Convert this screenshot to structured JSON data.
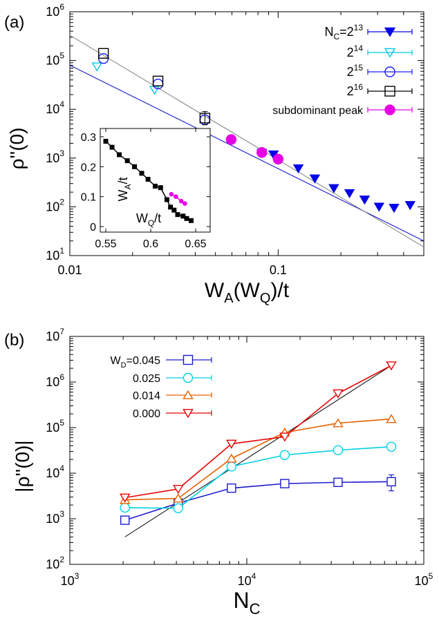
{
  "chart_data": [
    {
      "panel_label": "(a)",
      "type": "scatter",
      "xlabel_main": "W",
      "xlabel_sub_a": "A",
      "xlabel_paren_open": "(W",
      "xlabel_sub_q": "Q",
      "xlabel_tail": ")/t",
      "ylabel": "ρ''(0)",
      "xscale": "log",
      "yscale": "log",
      "xlim": [
        0.01,
        0.5
      ],
      "ylim": [
        10,
        1000000
      ],
      "x_ticks": [
        {
          "v": 0.01,
          "label": "0.01"
        },
        {
          "v": 0.1,
          "label": "0.1"
        }
      ],
      "y_ticks": [
        {
          "v": 10,
          "b": "10",
          "e": "1"
        },
        {
          "v": 100,
          "b": "10",
          "e": "2"
        },
        {
          "v": 1000,
          "b": "10",
          "e": "3"
        },
        {
          "v": 10000,
          "b": "10",
          "e": "4"
        },
        {
          "v": 100000,
          "b": "10",
          "e": "5"
        },
        {
          "v": 1000000,
          "b": "10",
          "e": "6"
        }
      ],
      "legend_position": "top-right",
      "legend": {
        "e1_main": "N",
        "e1_sub": "C",
        "e1_tail": "=2",
        "e1_exp": "13",
        "e2_base": "2",
        "e2_exp": "14",
        "e3_base": "2",
        "e3_exp": "15",
        "e4_base": "2",
        "e4_exp": "16",
        "e5_label": "subdominant peak"
      },
      "series": [
        {
          "marker": "triangle-down-filled",
          "color": "#0000e6",
          "points": [
            [
              0.0835,
              1270
            ],
            [
              0.095,
              1180
            ],
            [
              0.125,
              610
            ],
            [
              0.15,
              380
            ],
            [
              0.185,
              240
            ],
            [
              0.22,
              190
            ],
            [
              0.26,
              140
            ],
            [
              0.305,
              100
            ],
            [
              0.36,
              95
            ],
            [
              0.43,
              108
            ]
          ]
        },
        {
          "marker": "triangle-down-open",
          "color": "#00c8e6",
          "points": [
            [
              0.0135,
              75000
            ],
            [
              0.0255,
              25000
            ]
          ]
        },
        {
          "marker": "circle-open",
          "color": "#1a1aff",
          "points": [
            [
              0.0145,
              110000
            ],
            [
              0.0265,
              33000
            ],
            [
              0.0445,
              6100
            ]
          ]
        },
        {
          "marker": "square-open",
          "color": "#000000",
          "points": [
            [
              0.0145,
              140000
            ],
            [
              0.0265,
              38000
            ],
            [
              0.0445,
              6600
            ]
          ],
          "error_points": [
            {
              "x": 0.0445,
              "lo": 4800,
              "hi": 9000
            }
          ]
        },
        {
          "marker": "circle-filled",
          "color": "#e600e6",
          "points": [
            [
              0.0595,
              2400
            ],
            [
              0.0835,
              1300
            ],
            [
              0.1,
              950
            ]
          ]
        }
      ],
      "fit_lines": [
        {
          "color": "#0000cc",
          "points": [
            [
              0.01,
              80000
            ],
            [
              0.5,
              20
            ]
          ]
        },
        {
          "color": "#808080",
          "points": [
            [
              0.01,
              330000
            ],
            [
              0.5,
              15
            ]
          ]
        }
      ],
      "inset": {
        "type": "line",
        "xlim": [
          0.55,
          0.66
        ],
        "ylim": [
          0,
          0.3
        ],
        "xlabel_main": "W",
        "xlabel_sub": "Q",
        "xlabel_tail": "/t",
        "ylabel_main": "W",
        "ylabel_sub": "A",
        "ylabel_tail": "/t",
        "x_ticks": [
          {
            "v": 0.55,
            "label": "0.55"
          },
          {
            "v": 0.6,
            "label": "0.6"
          },
          {
            "v": 0.65,
            "label": "0.65"
          }
        ],
        "y_ticks": [
          {
            "v": 0,
            "label": "0"
          },
          {
            "v": 0.1,
            "label": "0.1"
          },
          {
            "v": 0.2,
            "label": "0.2"
          },
          {
            "v": 0.3,
            "label": "0.3"
          }
        ],
        "series": [
          {
            "color": "#000000",
            "marker": "square-filled",
            "points": [
              [
                0.55,
                0.285
              ],
              [
                0.557,
                0.265
              ],
              [
                0.565,
                0.24
              ],
              [
                0.574,
                0.22
              ],
              [
                0.582,
                0.2
              ],
              [
                0.59,
                0.178
              ],
              [
                0.597,
                0.158
              ],
              [
                0.605,
                0.135
              ],
              [
                0.611,
                0.13
              ],
              [
                0.618,
                0.09
              ],
              [
                0.622,
                0.065
              ],
              [
                0.626,
                0.055
              ],
              [
                0.63,
                0.04
              ],
              [
                0.636,
                0.035
              ],
              [
                0.64,
                0.027
              ],
              [
                0.645,
                0.02
              ]
            ]
          },
          {
            "color": "#e600e6",
            "marker": "circle-filled",
            "points": [
              [
                0.623,
                0.108
              ],
              [
                0.628,
                0.1
              ],
              [
                0.634,
                0.085
              ],
              [
                0.638,
                0.077
              ]
            ]
          }
        ]
      }
    },
    {
      "panel_label": "(b)",
      "type": "line",
      "xlabel_main": "N",
      "xlabel_sub": "C",
      "ylabel": "|ρ''(0)|",
      "xscale": "log",
      "yscale": "log",
      "xlim": [
        1000,
        100000
      ],
      "ylim": [
        100,
        10000000
      ],
      "x_ticks": [
        {
          "v": 1000,
          "b": "10",
          "e": "3"
        },
        {
          "v": 10000,
          "b": "10",
          "e": "4"
        },
        {
          "v": 100000,
          "b": "10",
          "e": "5"
        }
      ],
      "y_ticks": [
        {
          "v": 100,
          "b": "10",
          "e": "2"
        },
        {
          "v": 1000,
          "b": "10",
          "e": "3"
        },
        {
          "v": 10000,
          "b": "10",
          "e": "4"
        },
        {
          "v": 100000,
          "b": "10",
          "e": "5"
        },
        {
          "v": 1000000,
          "b": "10",
          "e": "6"
        },
        {
          "v": 10000000,
          "b": "10",
          "e": "7"
        }
      ],
      "legend_position": "top-left",
      "legend": {
        "e1_main": "W",
        "e1_sub": "D",
        "e1_tail": "=0.045",
        "e2_label": "0.025",
        "e3_label": "0.014",
        "e4_label": "0.000"
      },
      "x": [
        2048,
        4096,
        8192,
        16384,
        32768,
        65536
      ],
      "series": [
        {
          "marker": "square-open",
          "color": "#1a1acc",
          "values": [
            930,
            2200,
            4700,
            5900,
            6300,
            6500
          ],
          "error": {
            "index": 5,
            "lo": 4100,
            "hi": 9200
          }
        },
        {
          "marker": "circle-open",
          "color": "#00d0e6",
          "values": [
            1750,
            1700,
            14000,
            25000,
            32000,
            38000
          ]
        },
        {
          "marker": "triangle-up-open",
          "color": "#e66000",
          "values": [
            2600,
            2800,
            21000,
            78000,
            125000,
            155000
          ]
        },
        {
          "marker": "triangle-down-open",
          "color": "#e60000",
          "values": [
            2900,
            4500,
            44000,
            63000,
            560000,
            2300000
          ]
        }
      ],
      "fit_lines": [
        {
          "color": "#000000",
          "points": [
            [
              2048,
              400
            ],
            [
              65536,
              2300000
            ]
          ]
        }
      ]
    }
  ]
}
